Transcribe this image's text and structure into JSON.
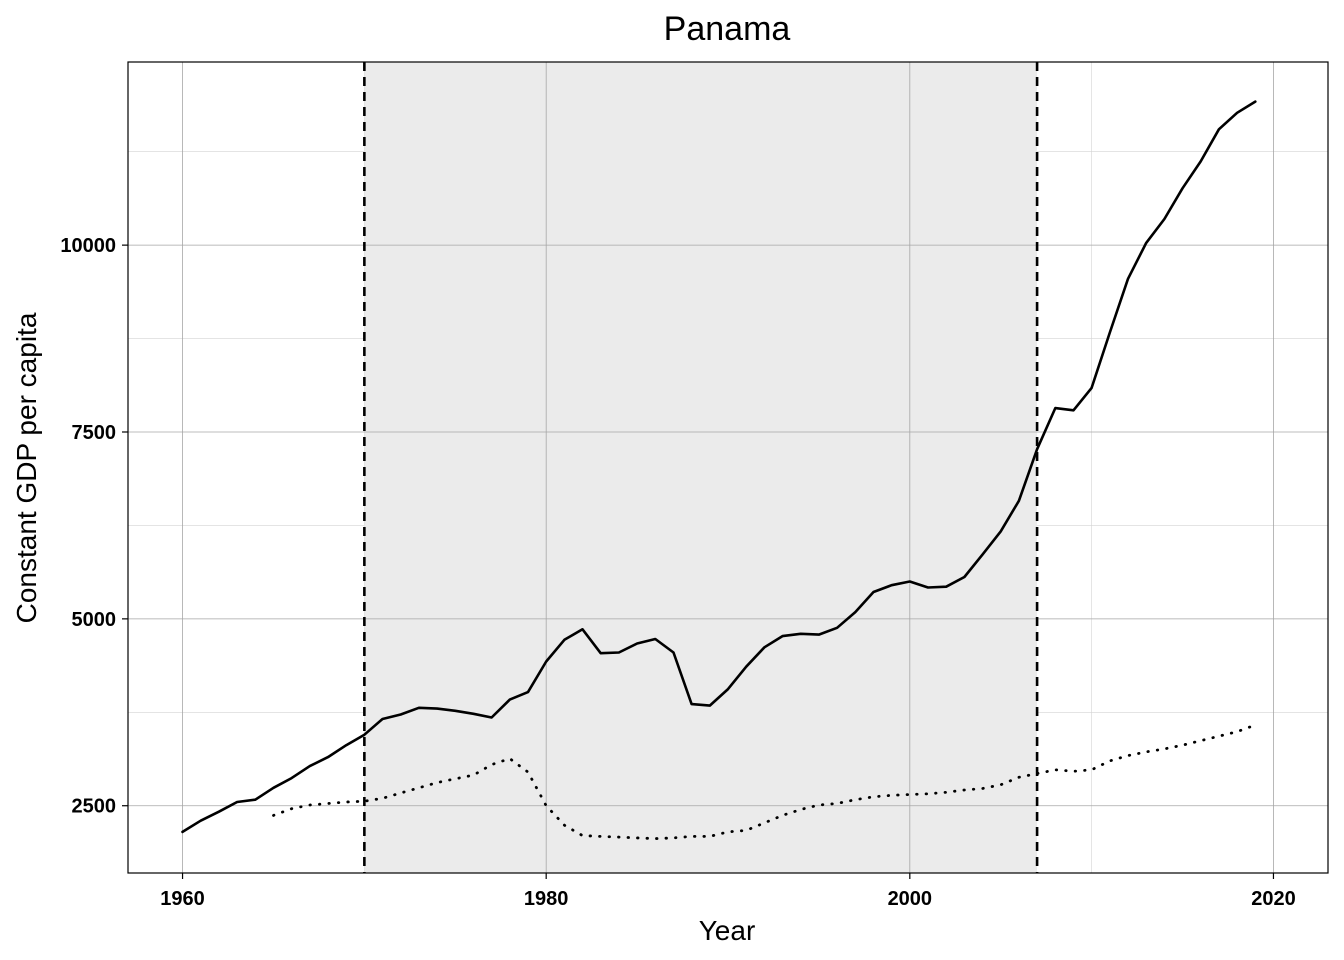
{
  "chart_data": {
    "type": "line",
    "title": "Panama",
    "xlabel": "Year",
    "ylabel": "Constant GDP per capita",
    "xlim": [
      1957,
      2023
    ],
    "ylim": [
      1600,
      12450
    ],
    "x_ticks": [
      1960,
      1980,
      2000,
      2020
    ],
    "y_ticks": [
      2500,
      5000,
      7500,
      10000
    ],
    "grid": true,
    "legend": "none",
    "shaded_region": {
      "x_start": 1970,
      "x_end": 2007,
      "color": "#ebebeb"
    },
    "vertical_lines": [
      {
        "x": 1970,
        "style": "dashed"
      },
      {
        "x": 2007,
        "style": "dashed"
      }
    ],
    "series": [
      {
        "style": "solid",
        "color": "#000000",
        "x": [
          1960,
          1961,
          1962,
          1963,
          1964,
          1965,
          1966,
          1967,
          1968,
          1969,
          1970,
          1971,
          1972,
          1973,
          1974,
          1975,
          1976,
          1977,
          1978,
          1979,
          1980,
          1981,
          1982,
          1983,
          1984,
          1985,
          1986,
          1987,
          1988,
          1989,
          1990,
          1991,
          1992,
          1993,
          1994,
          1995,
          1996,
          1997,
          1998,
          1999,
          2000,
          2001,
          2002,
          2003,
          2004,
          2005,
          2006,
          2007,
          2008,
          2009,
          2010,
          2011,
          2012,
          2013,
          2014,
          2015,
          2016,
          2017,
          2018,
          2019
        ],
        "values": [
          2150,
          2300,
          2420,
          2550,
          2580,
          2740,
          2870,
          3030,
          3150,
          3310,
          3450,
          3660,
          3720,
          3810,
          3800,
          3770,
          3730,
          3680,
          3920,
          4020,
          4430,
          4720,
          4860,
          4540,
          4550,
          4670,
          4730,
          4550,
          3860,
          3840,
          4060,
          4360,
          4620,
          4770,
          4800,
          4790,
          4880,
          5090,
          5360,
          5450,
          5500,
          5420,
          5430,
          5560,
          5860,
          6170,
          6580,
          7270,
          7820,
          7790,
          8090,
          8830,
          9550,
          10030,
          10350,
          10760,
          11120,
          11550,
          11770,
          11920
        ]
      },
      {
        "style": "dotted",
        "color": "#000000",
        "x": [
          1965,
          1966,
          1967,
          1968,
          1969,
          1970,
          1971,
          1972,
          1973,
          1974,
          1975,
          1976,
          1977,
          1978,
          1979,
          1980,
          1981,
          1982,
          1983,
          1984,
          1985,
          1986,
          1987,
          1988,
          1989,
          1990,
          1991,
          1992,
          1993,
          1994,
          1995,
          1996,
          1997,
          1998,
          1999,
          2000,
          2001,
          2002,
          2003,
          2004,
          2005,
          2006,
          2007,
          2008,
          2009,
          2010,
          2011,
          2012,
          2013,
          2014,
          2015,
          2016,
          2017,
          2018,
          2019
        ],
        "values": [
          2370,
          2460,
          2510,
          2530,
          2550,
          2560,
          2600,
          2670,
          2740,
          2810,
          2860,
          2910,
          3050,
          3130,
          2950,
          2500,
          2240,
          2100,
          2090,
          2080,
          2070,
          2060,
          2070,
          2090,
          2090,
          2150,
          2170,
          2270,
          2370,
          2450,
          2510,
          2530,
          2580,
          2620,
          2640,
          2650,
          2660,
          2680,
          2710,
          2730,
          2780,
          2880,
          2930,
          2980,
          2960,
          2980,
          3100,
          3170,
          3220,
          3260,
          3310,
          3370,
          3430,
          3490,
          3580
        ]
      }
    ]
  }
}
